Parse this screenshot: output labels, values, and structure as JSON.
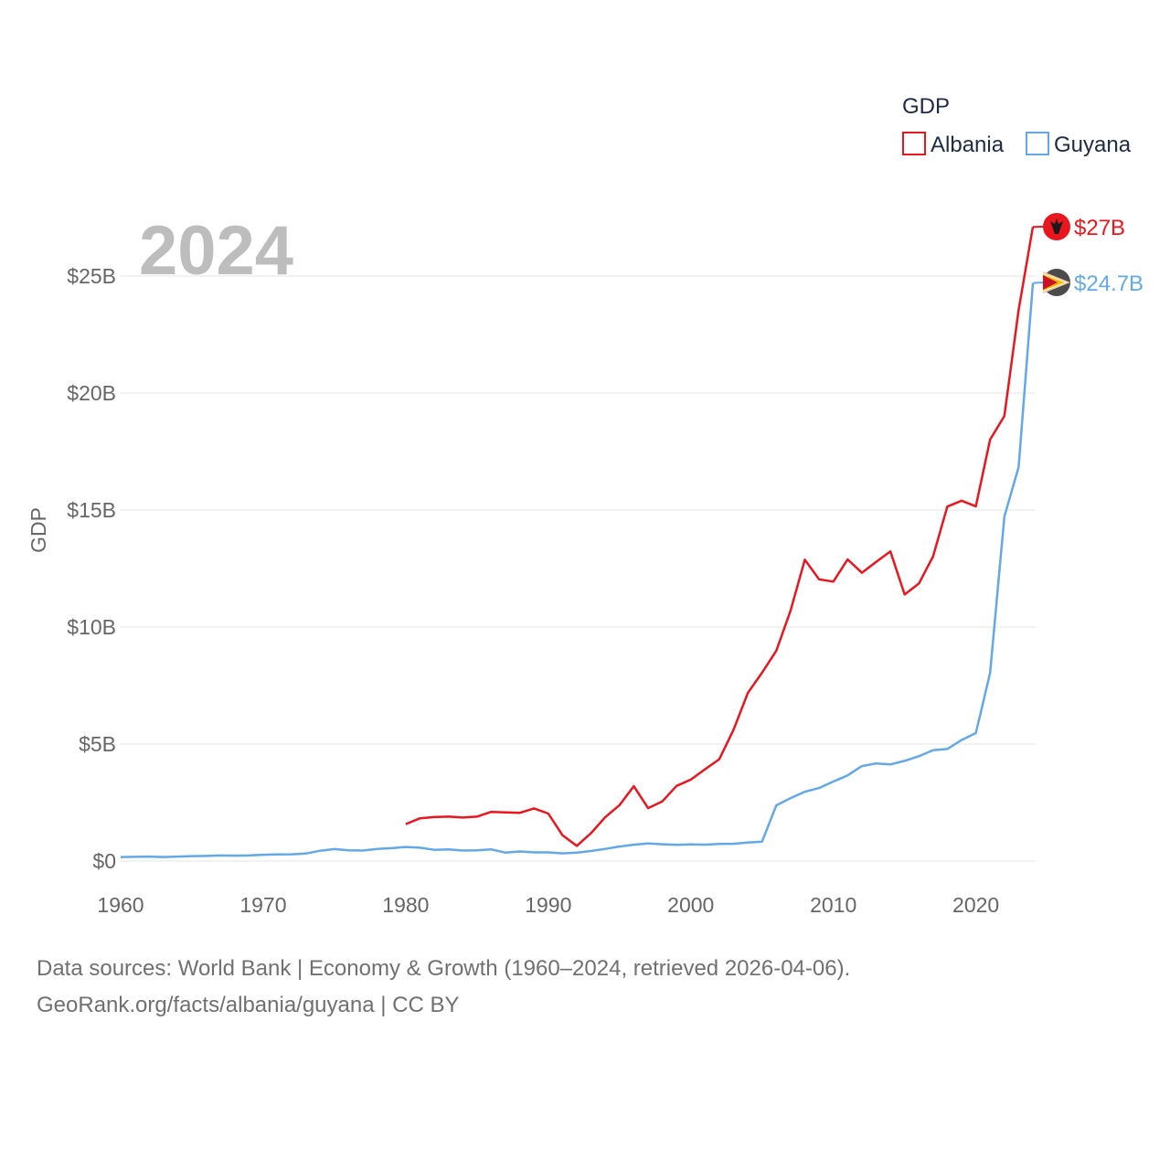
{
  "chart_data": {
    "type": "line",
    "year_display": "2024",
    "ylabel": "GDP",
    "legend_title": "GDP",
    "legend_position": "top-right",
    "x_range": [
      1960,
      2024
    ],
    "ylim": [
      0,
      28
    ],
    "x_ticks": [
      {
        "value": 1960,
        "label": "1960"
      },
      {
        "value": 1970,
        "label": "1970"
      },
      {
        "value": 1980,
        "label": "1980"
      },
      {
        "value": 1990,
        "label": "1990"
      },
      {
        "value": 2000,
        "label": "2000"
      },
      {
        "value": 2010,
        "label": "2010"
      },
      {
        "value": 2020,
        "label": "2020"
      }
    ],
    "y_ticks": [
      {
        "value": 0,
        "label": "$0"
      },
      {
        "value": 5,
        "label": "$5B"
      },
      {
        "value": 10,
        "label": "$10B"
      },
      {
        "value": 15,
        "label": "$15B"
      },
      {
        "value": 20,
        "label": "$20B"
      },
      {
        "value": 25,
        "label": "$25B"
      }
    ],
    "units": "US$ billions",
    "series": [
      {
        "name": "Albania",
        "color": "#e8161e",
        "end_label": "$27B",
        "flag_icon": "albania-flag-icon",
        "years": [
          1980,
          1981,
          1982,
          1983,
          1984,
          1985,
          1986,
          1987,
          1988,
          1989,
          1990,
          1991,
          1992,
          1993,
          1994,
          1995,
          1996,
          1997,
          1998,
          1999,
          2000,
          2001,
          2002,
          2003,
          2004,
          2005,
          2006,
          2007,
          2008,
          2009,
          2010,
          2011,
          2012,
          2013,
          2014,
          2015,
          2016,
          2017,
          2018,
          2019,
          2020,
          2021,
          2022,
          2023,
          2024
        ],
        "values": [
          1.58,
          1.83,
          1.88,
          1.9,
          1.86,
          1.9,
          2.1,
          2.08,
          2.06,
          2.25,
          2.03,
          1.1,
          0.65,
          1.19,
          1.88,
          2.39,
          3.2,
          2.26,
          2.55,
          3.21,
          3.48,
          3.92,
          4.35,
          5.61,
          7.18,
          8.05,
          8.99,
          10.7,
          12.88,
          12.04,
          11.94,
          12.89,
          12.32,
          12.78,
          13.23,
          11.39,
          11.86,
          13.02,
          15.15,
          15.4,
          15.16,
          18.01,
          19.02,
          23.55,
          27.1
        ]
      },
      {
        "name": "Guyana",
        "color": "#64a8e8",
        "end_label": "$24.7B",
        "flag_icon": "guyana-flag-icon",
        "years": [
          1960,
          1961,
          1962,
          1963,
          1964,
          1965,
          1966,
          1967,
          1968,
          1969,
          1970,
          1971,
          1972,
          1973,
          1974,
          1975,
          1976,
          1977,
          1978,
          1979,
          1980,
          1981,
          1982,
          1983,
          1984,
          1985,
          1986,
          1987,
          1988,
          1989,
          1990,
          1991,
          1992,
          1993,
          1994,
          1995,
          1996,
          1997,
          1998,
          1999,
          2000,
          2001,
          2002,
          2003,
          2004,
          2005,
          2006,
          2007,
          2008,
          2009,
          2010,
          2011,
          2012,
          2013,
          2014,
          2015,
          2016,
          2017,
          2018,
          2019,
          2020,
          2021,
          2022,
          2023,
          2024
        ],
        "values": [
          0.17,
          0.18,
          0.19,
          0.17,
          0.19,
          0.21,
          0.22,
          0.24,
          0.23,
          0.24,
          0.27,
          0.28,
          0.29,
          0.32,
          0.44,
          0.51,
          0.46,
          0.45,
          0.52,
          0.55,
          0.6,
          0.57,
          0.48,
          0.5,
          0.45,
          0.46,
          0.5,
          0.36,
          0.41,
          0.37,
          0.37,
          0.33,
          0.36,
          0.43,
          0.52,
          0.62,
          0.7,
          0.75,
          0.72,
          0.69,
          0.71,
          0.7,
          0.73,
          0.74,
          0.79,
          0.83,
          2.38,
          2.69,
          2.96,
          3.12,
          3.4,
          3.66,
          4.06,
          4.17,
          4.13,
          4.28,
          4.48,
          4.74,
          4.79,
          5.17,
          5.47,
          8.04,
          14.72,
          16.84,
          24.7
        ]
      }
    ]
  },
  "footer": {
    "line1": "Data sources: World Bank | Economy & Growth (1960–2024, retrieved 2026-04-06).",
    "line2": "GeoRank.org/facts/albania/guyana | CC BY"
  }
}
